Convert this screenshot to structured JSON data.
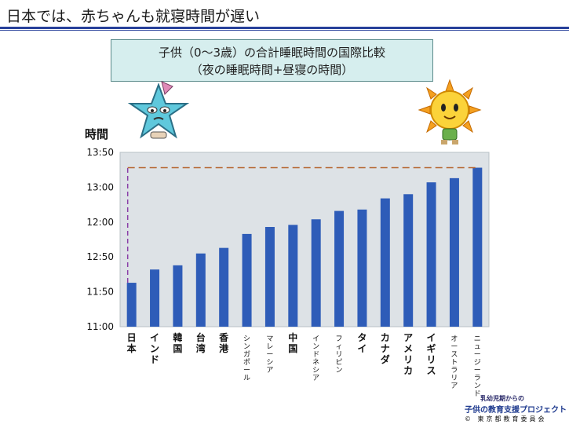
{
  "slide": {
    "title": "日本では、赤ちゃんも就寝時間が遅い"
  },
  "chart_data": {
    "type": "bar",
    "title_lines": [
      "子供（0～3歳）の合計睡眠時間の国際比較",
      "（夜の睡眠時間+昼寝の時間）"
    ],
    "ylabel": "時間",
    "xlabel": "",
    "y_unit": "hours:minutes",
    "yticks": [
      "11:00",
      "11:50",
      "12:50",
      "12:00",
      "13:00",
      "13:50"
    ],
    "ylim_hours": [
      11.0,
      13.5
    ],
    "grid": false,
    "bar_color": "#2e5cb8",
    "reference_line": {
      "from": "日本",
      "to": "ニュージーランド",
      "color": "#b5652f"
    },
    "categories": [
      "日本",
      "インド",
      "韓国",
      "台湾",
      "香港",
      "シンガポール",
      "マレーシア",
      "中国",
      "インドネシア",
      "フィリピン",
      "タイ",
      "カナダ",
      "アメリカ",
      "イギリス",
      "オーストラリア",
      "ニュージーランド"
    ],
    "category_labels": [
      [
        "日",
        "本"
      ],
      [
        "イ",
        "ン",
        "ド"
      ],
      [
        "韓",
        "国"
      ],
      [
        "台",
        "湾"
      ],
      [
        "香",
        "港"
      ],
      [
        "シ",
        "ン",
        "ガ",
        "ポ",
        "ー",
        "ル"
      ],
      [
        "マ",
        "レ",
        "ー",
        "シ",
        "ア"
      ],
      [
        "中",
        "国"
      ],
      [
        "イ",
        "ン",
        "ド",
        "ネ",
        "シ",
        "ア"
      ],
      [
        "フ",
        "ィ",
        "リ",
        "ピ",
        "ン"
      ],
      [
        "タ",
        "イ"
      ],
      [
        "カ",
        "ナ",
        "ダ"
      ],
      [
        "ア",
        "メ",
        "リ",
        "カ"
      ],
      [
        "イ",
        "ギ",
        "リ",
        "ス"
      ],
      [
        "オ",
        "ー",
        "ス",
        "ト",
        "ラ",
        "リ",
        "ア"
      ],
      [
        "ニ",
        "ュ",
        "ー",
        "ジ",
        "ー",
        "ラ",
        "ン",
        "ド"
      ]
    ],
    "values_hours": [
      11.63,
      11.82,
      11.88,
      12.05,
      12.13,
      12.33,
      12.43,
      12.46,
      12.54,
      12.66,
      12.68,
      12.84,
      12.9,
      13.07,
      13.13,
      13.28
    ]
  },
  "footer": {
    "line1": "乳幼児期からの",
    "line2": "子供の教育支援プロジェクト",
    "line3": "© 東京都教育委員会"
  }
}
